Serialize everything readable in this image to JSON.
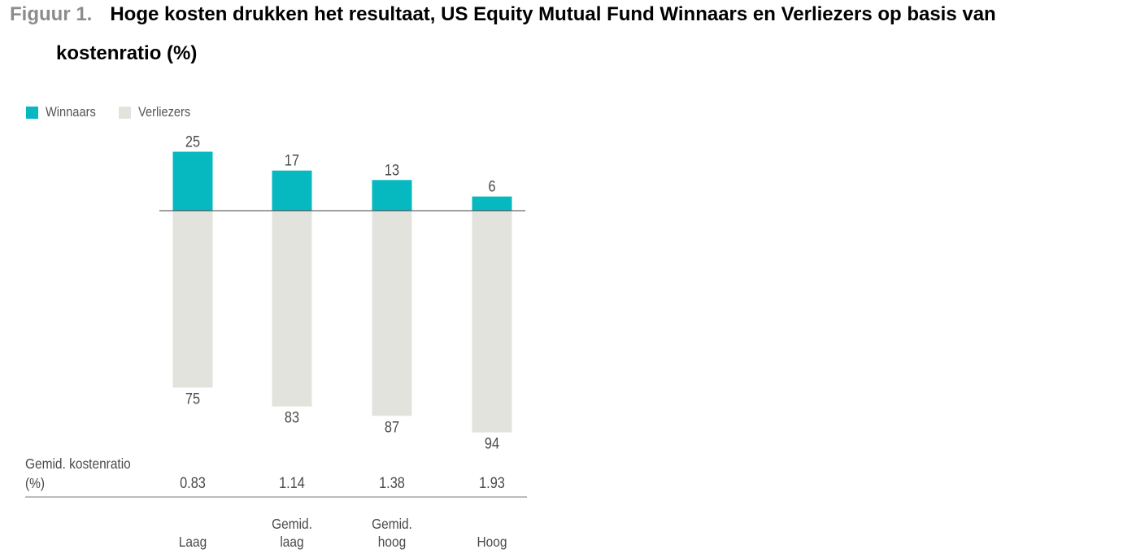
{
  "header": {
    "figure_label": "Figuur 1.",
    "title_line1": "Hoge kosten drukken het resultaat, US Equity Mutual Fund Winnaars en Verliezers op basis van",
    "title_line2": "kostenratio (%)"
  },
  "legend": {
    "winners_label": "Winnaars",
    "losers_label": "Verliezers"
  },
  "colors": {
    "winners": "#06b9c0",
    "losers": "#e3e3de",
    "axis": "#404040",
    "text": "#4a4a4a"
  },
  "chart_data": {
    "type": "bar",
    "stacked_diverging": true,
    "categories": [
      [
        "Laag"
      ],
      [
        "Gemid.",
        "laag"
      ],
      [
        "Gemid.",
        "hoog"
      ],
      [
        "Hoog"
      ]
    ],
    "series": [
      {
        "name": "Winnaars",
        "values": [
          25,
          17,
          13,
          6
        ]
      },
      {
        "name": "Verliezers",
        "values": [
          75,
          83,
          87,
          94
        ]
      }
    ],
    "expense_ratio_label": [
      "Gemid. kostenratio",
      "(%)"
    ],
    "expense_ratios": [
      "0.83",
      "1.14",
      "1.38",
      "1.93"
    ],
    "legend_position": "top-left",
    "grid": false
  }
}
